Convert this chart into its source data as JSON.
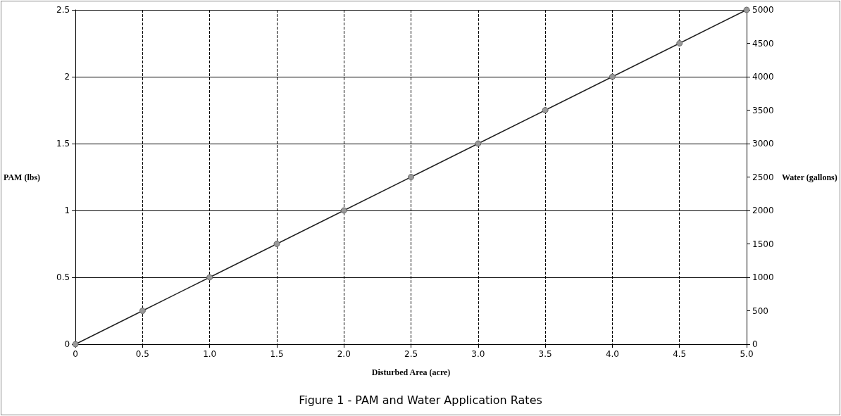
{
  "chart_data": {
    "type": "line",
    "title": "Figure 1 - PAM and Water Application Rates",
    "xlabel": "Disturbed Area (acre)",
    "ylabel": "PAM (lbs)",
    "y2label": "Water (gallons)",
    "x": [
      0,
      0.5,
      1,
      1.5,
      2,
      2.5,
      3,
      3.5,
      4,
      4.5,
      5
    ],
    "series": [
      {
        "color": "#222222",
        "values": [
          0,
          0.25,
          0.5,
          0.75,
          1,
          1.25,
          1.5,
          1.75,
          2,
          2.25,
          2.5
        ]
      }
    ],
    "xlim": [
      0,
      5
    ],
    "xticks": [
      0,
      0.5,
      {
        "value": 1,
        "label": "1.0"
      },
      1.5,
      {
        "value": 2,
        "label": "2.0"
      },
      2.5,
      {
        "value": 3,
        "label": "3.0"
      },
      3.5,
      {
        "value": 4,
        "label": "4.0"
      },
      4.5,
      {
        "value": 5,
        "label": "5.0"
      }
    ],
    "ylim": [
      0,
      2.5
    ],
    "yticks": [
      0,
      0.5,
      1,
      1.5,
      2,
      2.5
    ],
    "y2lim": [
      0,
      5000
    ],
    "y2ticks": [
      0,
      500,
      1000,
      1500,
      2000,
      2500,
      3000,
      3500,
      4000,
      4500,
      5000
    ],
    "grid": true,
    "marker": "circle",
    "line_style": "solid"
  }
}
